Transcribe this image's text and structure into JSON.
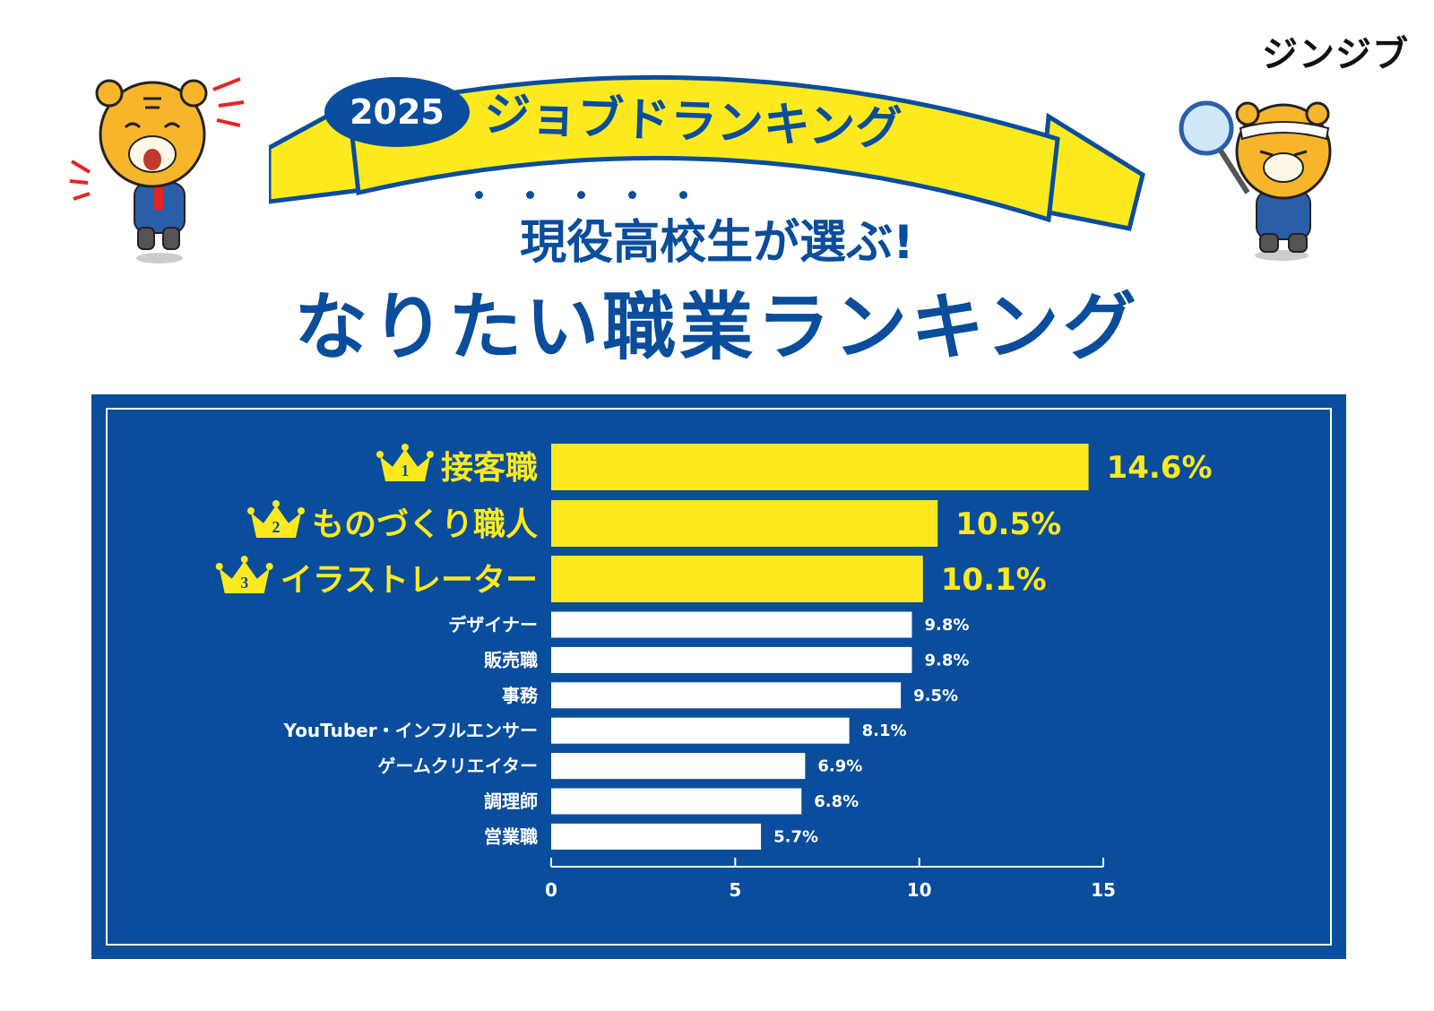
{
  "logo": "ジンジブ",
  "banner": {
    "year": "2025",
    "title": "ジョブドランキング"
  },
  "subtitle": "現役高校生が選ぶ!",
  "title": "なりたい職業ランキング",
  "colors": {
    "navy": "#0a4d9c",
    "yellow": "#fdea1e",
    "white": "#ffffff"
  },
  "chart_data": {
    "type": "bar",
    "orientation": "horizontal",
    "categories": [
      "接客職",
      "ものづくり職人",
      "イラストレーター",
      "デザイナー",
      "販売職",
      "事務",
      "YouTuber・インフルエンサー",
      "ゲームクリエイター",
      "調理師",
      "営業職"
    ],
    "values": [
      14.6,
      10.5,
      10.1,
      9.8,
      9.8,
      9.5,
      8.1,
      6.9,
      6.8,
      5.7
    ],
    "value_labels": [
      "14.6%",
      "10.5%",
      "10.1%",
      "9.8%",
      "9.8%",
      "9.5%",
      "8.1%",
      "6.9%",
      "6.8%",
      "5.7%"
    ],
    "ranks": [
      "1",
      "2",
      "3"
    ],
    "xlim": [
      0,
      15
    ],
    "xticks": [
      "0",
      "5",
      "10",
      "15"
    ],
    "grid": false
  }
}
